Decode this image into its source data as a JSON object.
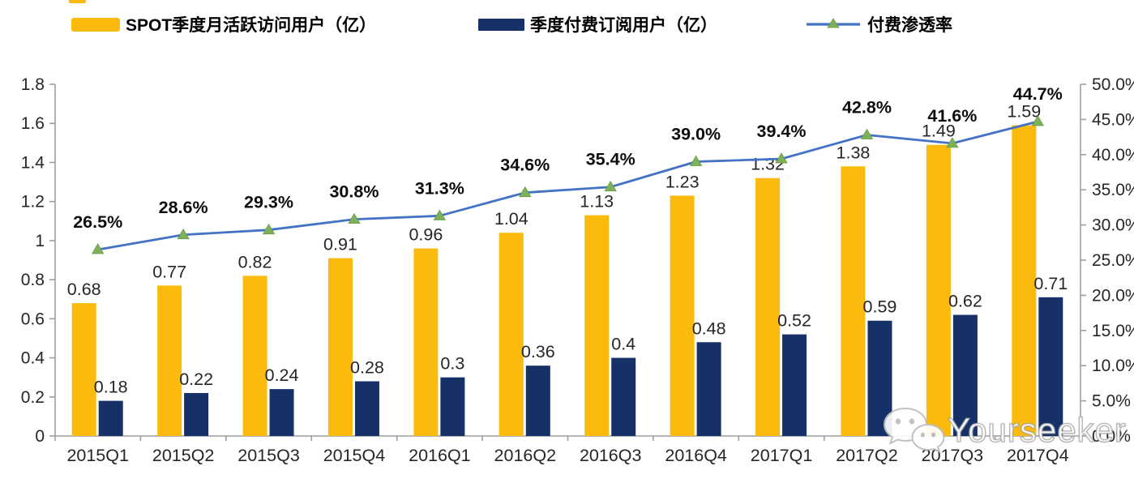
{
  "page": {
    "background": "#ffffff"
  },
  "colors": {
    "mau_bar": "#FBBA0E",
    "sub_bar": "#163168",
    "penetration_line": "#4472C4",
    "penetration_marker": "#7CB159",
    "axis": "#9E9E9E",
    "tick_text": "#262626",
    "value_text": "#262626",
    "pct_text": "#0D0D0D"
  },
  "legend": {
    "items": [
      {
        "label": "SPOT季度月活跃访问用户（亿）",
        "swatch": "bar",
        "color": "#FBBA0E"
      },
      {
        "label": "季度付费订阅用户（亿）",
        "swatch": "bar",
        "color": "#163168"
      },
      {
        "label": "付费渗透率",
        "swatch": "line-triangle",
        "color": "#4472C4",
        "marker_color": "#7CB159"
      }
    ]
  },
  "watermark": {
    "icon": "wechat-icon",
    "text": "Yourseeker"
  },
  "chart_data": {
    "type": "combo-bar-line",
    "categories": [
      "2015Q1",
      "2015Q2",
      "2015Q3",
      "2015Q4",
      "2016Q1",
      "2016Q2",
      "2016Q3",
      "2016Q4",
      "2017Q1",
      "2017Q2",
      "2017Q3",
      "2017Q4"
    ],
    "series": [
      {
        "name": "SPOT季度月活跃访问用户（亿）",
        "type": "bar",
        "axis": "left",
        "color": "#FBBA0E",
        "values": [
          0.68,
          0.77,
          0.82,
          0.91,
          0.96,
          1.04,
          1.13,
          1.23,
          1.32,
          1.38,
          1.49,
          1.59
        ],
        "labels": [
          "0.68",
          "0.77",
          "0.82",
          "0.91",
          "0.96",
          "1.04",
          "1.13",
          "1.23",
          "1.32",
          "1.38",
          "1.49",
          "1.59"
        ]
      },
      {
        "name": "季度付费订阅用户（亿）",
        "type": "bar",
        "axis": "left",
        "color": "#163168",
        "values": [
          0.18,
          0.22,
          0.24,
          0.28,
          0.3,
          0.36,
          0.4,
          0.48,
          0.52,
          0.59,
          0.62,
          0.71
        ],
        "labels": [
          "0.18",
          "0.22",
          "0.24",
          "0.28",
          "0.3",
          "0.36",
          "0.4",
          "0.48",
          "0.52",
          "0.59",
          "0.62",
          "0.71"
        ]
      },
      {
        "name": "付费渗透率",
        "type": "line",
        "axis": "right",
        "color": "#4472C4",
        "marker": "triangle",
        "marker_color": "#7CB159",
        "values": [
          26.5,
          28.6,
          29.3,
          30.8,
          31.3,
          34.6,
          35.4,
          39.0,
          39.4,
          42.8,
          41.6,
          44.7
        ],
        "labels": [
          "26.5%",
          "28.6%",
          "29.3%",
          "30.8%",
          "31.3%",
          "34.6%",
          "35.4%",
          "39.0%",
          "39.4%",
          "42.8%",
          "41.6%",
          "44.7%"
        ]
      }
    ],
    "left_axis": {
      "min": 0,
      "max": 1.8,
      "ticks": [
        "0",
        "0.2",
        "0.4",
        "0.6",
        "0.8",
        "1",
        "1.2",
        "1.4",
        "1.6",
        "1.8"
      ]
    },
    "right_axis": {
      "min": 0,
      "max": 50,
      "ticks": [
        "0.0%",
        "5.0%",
        "10.0%",
        "15.0%",
        "20.0%",
        "25.0%",
        "30.0%",
        "35.0%",
        "40.0%",
        "45.0%",
        "50.0%"
      ]
    },
    "grid": false,
    "legend_position": "top"
  }
}
